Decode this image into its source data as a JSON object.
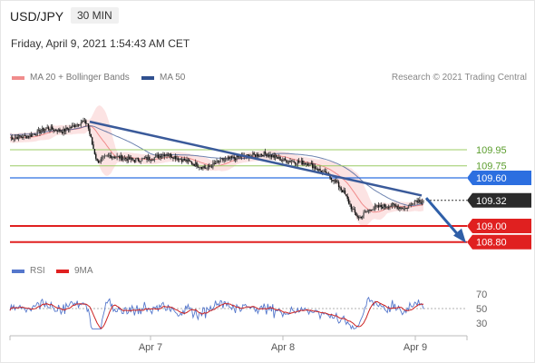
{
  "header": {
    "symbol": "USD/JPY",
    "timeframe": "30 MIN",
    "datetime": "Friday, April 9, 2021 1:54:43 AM CET"
  },
  "legend": {
    "bollinger": "MA 20 + Bollinger Bands",
    "ma50": "MA 50",
    "rsi": "RSI",
    "ma9": "9MA"
  },
  "copyright": "Research © 2021 Trading Central",
  "colors": {
    "candle": "#2e2e2e",
    "bollinger": "#f08c8c",
    "ma50": "#30508f",
    "trend": "#3a5a9a",
    "green_level": "#9ccc65",
    "blue_level": "#2c6fe0",
    "red_level": "#e02020",
    "rsi": "#5577cc",
    "rsi_ma": "#cc2222"
  },
  "chart_data": [
    {
      "type": "candlestick",
      "x_ticks": [
        "Apr 7",
        "Apr 8",
        "Apr 9"
      ],
      "y_range": [
        108.65,
        110.55
      ],
      "price_levels": [
        {
          "label": "109.95",
          "value": 109.95,
          "style": "green"
        },
        {
          "label": "109.75",
          "value": 109.75,
          "style": "green"
        },
        {
          "label": "109.60",
          "value": 109.6,
          "style": "blue"
        },
        {
          "label": "109.32",
          "value": 109.32,
          "style": "current"
        },
        {
          "label": "109.00",
          "value": 109.0,
          "style": "red"
        },
        {
          "label": "108.80",
          "value": 108.8,
          "style": "red"
        }
      ],
      "series": [
        {
          "name": "MA 20 + Bollinger Bands",
          "kind": "band"
        },
        {
          "name": "MA 50",
          "kind": "line"
        }
      ]
    },
    {
      "type": "line",
      "y_ticks": [
        "70",
        "50",
        "30"
      ],
      "y_range": [
        15,
        85
      ],
      "reference_line": 50,
      "series": [
        {
          "name": "RSI"
        },
        {
          "name": "9MA"
        }
      ]
    }
  ]
}
